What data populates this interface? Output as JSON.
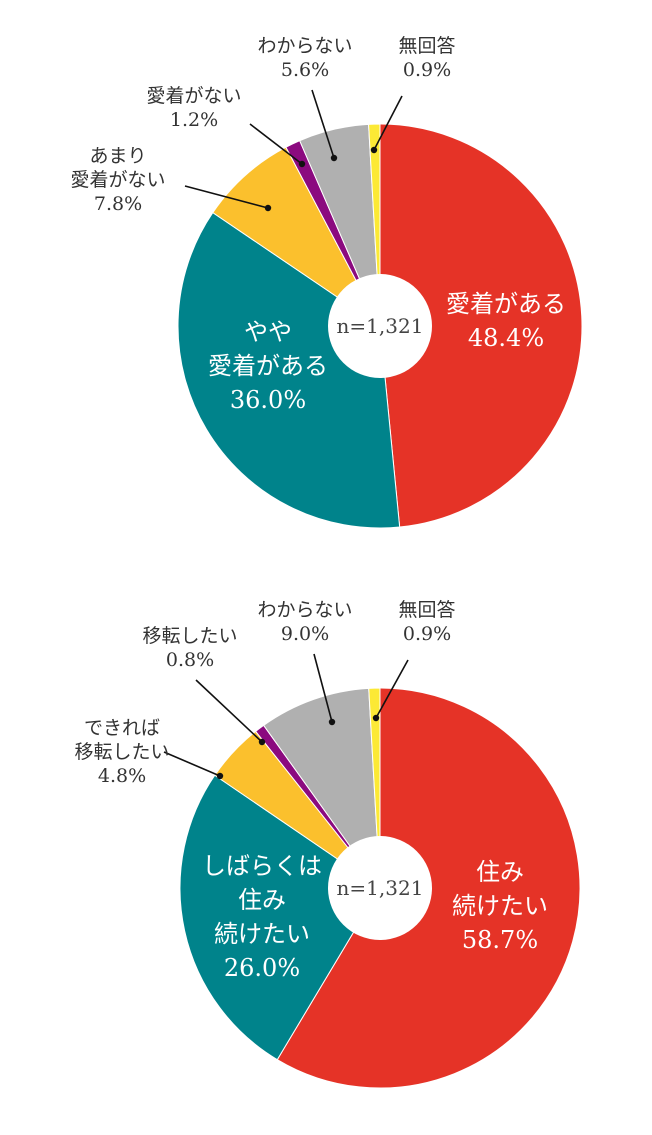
{
  "colors": {
    "red": "#e53327",
    "teal": "#00838b",
    "orange": "#fbc02d",
    "purple": "#8b0a7f",
    "gray": "#b0b0b0",
    "yellow": "#fce935",
    "leader": "#111111"
  },
  "chart_data": [
    {
      "type": "pie",
      "donut": true,
      "center_label": "n=1,321",
      "slices": [
        {
          "label": [
            "愛着がある"
          ],
          "value_label": "48.4%",
          "value": 48.4,
          "color": "#e53327",
          "label_placement": "inside"
        },
        {
          "label": [
            "やや",
            "愛着がある"
          ],
          "value_label": "36.0%",
          "value": 36.0,
          "color": "#00838b",
          "label_placement": "inside"
        },
        {
          "label": [
            "あまり",
            "愛着がない"
          ],
          "value_label": "7.8%",
          "value": 7.8,
          "color": "#fbc02d",
          "label_placement": "outside-left"
        },
        {
          "label": [
            "愛着がない"
          ],
          "value_label": "1.2%",
          "value": 1.2,
          "color": "#8b0a7f",
          "label_placement": "outside-top-left"
        },
        {
          "label": [
            "わからない"
          ],
          "value_label": "5.6%",
          "value": 5.6,
          "color": "#b0b0b0",
          "label_placement": "outside-top"
        },
        {
          "label": [
            "無回答"
          ],
          "value_label": "0.9%",
          "value": 0.9,
          "color": "#fce935",
          "label_placement": "outside-top-right"
        }
      ]
    },
    {
      "type": "pie",
      "donut": true,
      "center_label": "n=1,321",
      "slices": [
        {
          "label": [
            "住み",
            "続けたい"
          ],
          "value_label": "58.7%",
          "value": 58.7,
          "color": "#e53327",
          "label_placement": "inside"
        },
        {
          "label": [
            "しばらくは",
            "住み",
            "続けたい"
          ],
          "value_label": "26.0%",
          "value": 26.0,
          "color": "#00838b",
          "label_placement": "inside"
        },
        {
          "label": [
            "できれば",
            "移転したい"
          ],
          "value_label": "4.8%",
          "value": 4.8,
          "color": "#fbc02d",
          "label_placement": "outside-left"
        },
        {
          "label": [
            "移転したい"
          ],
          "value_label": "0.8%",
          "value": 0.8,
          "color": "#8b0a7f",
          "label_placement": "outside-top-left"
        },
        {
          "label": [
            "わからない"
          ],
          "value_label": "9.0%",
          "value": 9.0,
          "color": "#b0b0b0",
          "label_placement": "outside-top"
        },
        {
          "label": [
            "無回答"
          ],
          "value_label": "0.9%",
          "value": 0.9,
          "color": "#fce935",
          "label_placement": "outside-top-right"
        }
      ]
    }
  ]
}
